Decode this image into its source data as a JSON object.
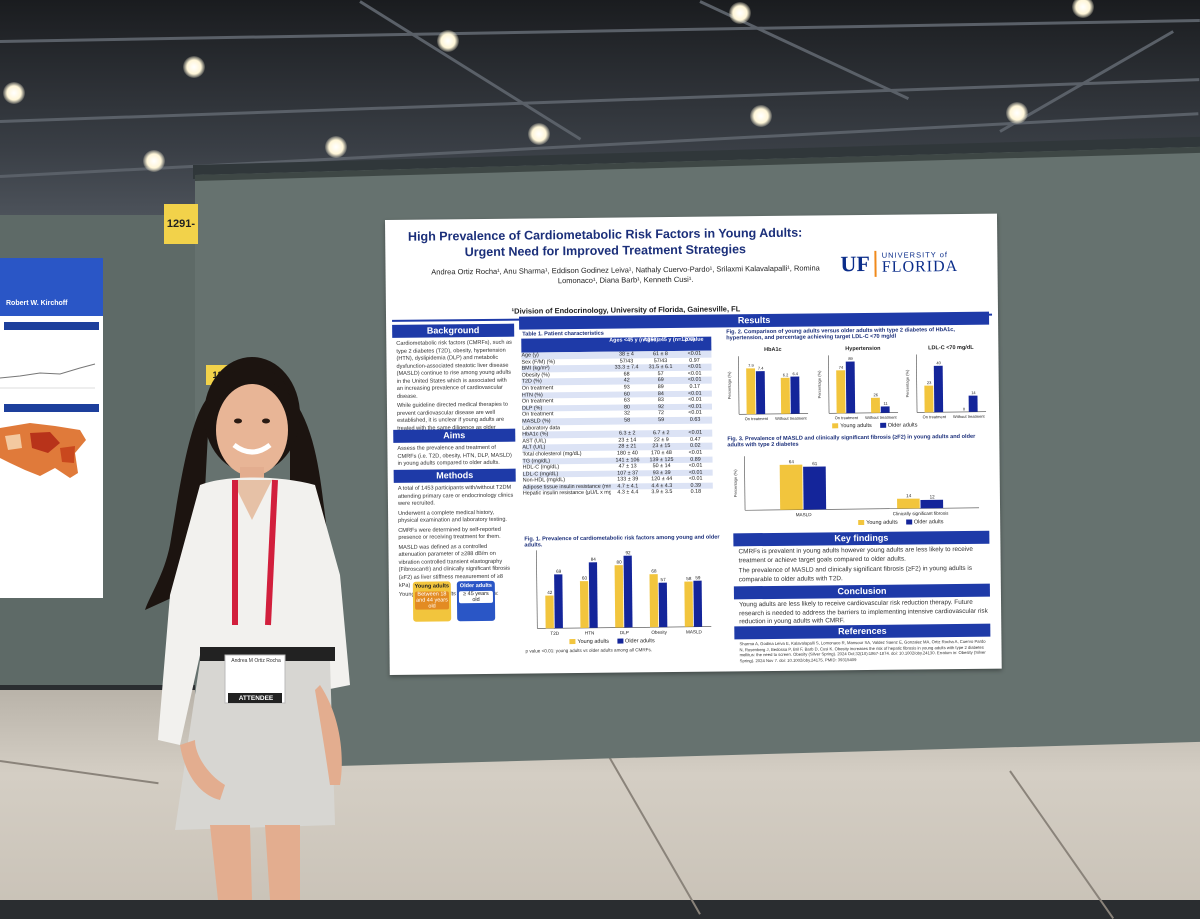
{
  "booth": {
    "board_number": "1291-",
    "board_number_small": "1292-"
  },
  "left_poster": {
    "author": "Robert W. Kirchoff"
  },
  "badge": {
    "name": "Andrea M Ortiz Rocha",
    "role": "ATTENDEE"
  },
  "poster": {
    "title_line1": "High Prevalence of Cardiometabolic Risk Factors in Young Adults:",
    "title_line2": "Urgent Need for Improved Treatment Strategies",
    "authors": "Andrea Ortiz Rocha¹, Anu Sharma¹, Eddison Godinez Leiva¹, Nathaly Cuervo-Pardo¹, Srilaxmi Kalavalapalli¹, Romina Lomonaco¹, Diana Barb¹, Kenneth Cusi¹.",
    "affiliation": "¹Division of Endocrinology, University of Florida, Gainesville, FL",
    "logo": {
      "uf": "UF",
      "university": "UNIVERSITY of",
      "florida": "FLORIDA"
    },
    "sections": {
      "background": "Background",
      "aims": "Aims",
      "methods": "Methods",
      "results": "Results",
      "key_findings": "Key findings",
      "conclusion": "Conclusion",
      "references": "References"
    },
    "background_text": [
      "Cardiometabolic risk factors (CMRFs), such as type 2 diabetes (T2D), obesity, hypertension (HTN), dyslipidemia (DLP) and metabolic dysfunction-associated steatotic liver disease (MASLD) continue to rise among young adults in the United States which is associated with an increasing prevalence of cardiovascular disease.",
      "While guideline directed medical therapies to prevent cardiovascular disease are well established, it is unclear if young adults are treated with the same diligence as older adults."
    ],
    "aims_text": "Assess the prevalence and treatment of CMRFs (i.e. T2D, obesity, HTN, DLP, MASLD) in young adults compared to older adults.",
    "methods_text": [
      "A total of 1453 participants with/without T2DM attending primary care or endocrinology clinics were recruited.",
      "Underwent a complete medical history, physical examination and laboratory testing.",
      "CMRFs were determined by self-reported presence or receiving treatment for them.",
      "MASLD was defined as a controlled attenuation parameter of ≥288 dB/m on vibration controlled transient elastography (Fibroscan®) and clinically significant fibrosis (≥F2) as liver stiffness measurement of ≥8 kPa)",
      "Young and older adults were defined as:"
    ],
    "groups": {
      "young_label": "Young adults",
      "young_def": "Between 18 and 44 years old",
      "older_label": "Older adults",
      "older_def": "≥ 45 years old"
    },
    "table": {
      "title": "Table 1. Patient characteristics",
      "headers": [
        "",
        "Ages <45 y (n=250)",
        "Ages ≥45 y (n=1203)",
        "p value"
      ],
      "rows": [
        [
          "Age (y)",
          "38 ± 4",
          "61 ± 8",
          "<0.01"
        ],
        [
          "Sex (F/M) (%)",
          "57/43",
          "57/43",
          "0.97"
        ],
        [
          "BMI (kg/m²)",
          "33.3 ± 7.4",
          "31.5 ± 6.1",
          "<0.01"
        ],
        [
          "   Obesity (%)",
          "68",
          "57",
          "<0.01"
        ],
        [
          "T2D (%)",
          "42",
          "69",
          "<0.01"
        ],
        [
          "   On treatment",
          "93",
          "89",
          "0.17"
        ],
        [
          "HTN (%)",
          "60",
          "84",
          "<0.01"
        ],
        [
          "   On treatment",
          "63",
          "83",
          "<0.01"
        ],
        [
          "DLP (%)",
          "80",
          "92",
          "<0.01"
        ],
        [
          "   On treatment",
          "32",
          "72",
          "<0.01"
        ],
        [
          "MASLD (%)",
          "58",
          "59",
          "0.63"
        ],
        [
          "Laboratory data",
          "",
          "",
          ""
        ],
        [
          "   HbA1c (%)",
          "6.3 ± 2",
          "6.7 ± 2",
          "<0.01"
        ],
        [
          "   AST (U/L)",
          "23 ± 14",
          "22 ± 9",
          "0.47"
        ],
        [
          "   ALT (U/L)",
          "28 ± 21",
          "23 ± 15",
          "0.02"
        ],
        [
          "   Total cholesterol (mg/dL)",
          "180 ± 40",
          "170 ± 48",
          "<0.01"
        ],
        [
          "   TG (mg/dL)",
          "141 ± 106",
          "139 ± 125",
          "0.89"
        ],
        [
          "   HDL-C (mg/dL)",
          "47 ± 13",
          "50 ± 14",
          "<0.01"
        ],
        [
          "   LDL-C (mg/dL)",
          "107 ± 37",
          "93 ± 39",
          "<0.01"
        ],
        [
          "   Non-HDL (mg/dL)",
          "133 ± 39",
          "120 ± 44",
          "<0.01"
        ],
        [
          "   Adipose tissue insulin resistance (mmol/L x µU/L)",
          "4.7 ± 4.1",
          "4.4 ± 4.3",
          "0.39"
        ],
        [
          "   Hepatic insulin resistance (µU/L x mg/dL)",
          "4.3 ± 4.4",
          "3.9 ± 3.5",
          "0.18"
        ]
      ]
    },
    "fig1": {
      "caption": "Fig. 1. Prevalence of cardiometabolic risk factors among young and older adults.",
      "footnote": "p value <0.01: young adults vs older adults among all CMRFs."
    },
    "fig2": {
      "caption": "Fig. 2. Comparison of young adults versus older adults with type 2 diabetes of HbA1c, hypertension, and percentage achieving target LDL-C <70 mg/dl",
      "panels": [
        "HbA1c",
        "Hypertension",
        "LDL-C <70 mg/dL"
      ]
    },
    "fig3": {
      "caption": "Fig. 3. Prevalence of MASLD and clinically significant fibrosis (≥F2) in young adults and older adults with type 2 diabetes"
    },
    "legend": {
      "young": "Young adults",
      "older": "Older adults"
    },
    "key_findings_text": [
      "CMRFs is prevalent in young adults however young adults are less likely to receive treatment or achieve target goals compared to older adults.",
      "The prevalence of MASLD and clinically significant fibrosis (≥F2) in young adults is comparable to older adults with T2D."
    ],
    "conclusion_text": "Young adults are less likely to receive cardiovascular risk reduction therapy. Future research is needed to address the barriers to implementing intensive cardiovascular risk reduction in young adults with CMRF.",
    "references_text": "Sharma A, Godina Leiva E, Kalavalapalli S, Lomonaco R, Mansour SA, Valdez Saenz E, Gonzalez MA, Ortiz Rocha A, Cuervo Pardo N, Rosenberg J, Bedossa P, Bril F, Barb D, Cusi K. Obesity increases the risk of hepatic fibrosis in young adults with type 2 diabetes mellitus: the need to screen. Obesity (Silver Spring). 2024 Oct;32(10):1867-1874. doi: 10.1002/oby.24130. Erratum in: Obesity (Silver Spring). 2024 Nov 7. doi: 10.1002/oby.24175. PMID: 39315409"
  },
  "chart_data": [
    {
      "type": "bar",
      "title": "Fig. 1. Prevalence of cardiometabolic risk factors among young and older adults.",
      "categories": [
        "T2D",
        "HTN",
        "DLP",
        "Obesity",
        "MASLD"
      ],
      "series": [
        {
          "name": "Young adults",
          "values": [
            42,
            60,
            80,
            68,
            58
          ],
          "color": "#f2c53d"
        },
        {
          "name": "Older adults",
          "values": [
            69,
            84,
            92,
            57,
            59
          ],
          "color": "#14259a"
        }
      ],
      "ylim": [
        0,
        100
      ]
    },
    {
      "type": "bar",
      "title": "HbA1c",
      "categories": [
        "On treatment",
        "Without treatment"
      ],
      "series": [
        {
          "name": "Young adults",
          "values": [
            7.9,
            6.2
          ],
          "color": "#f2c53d"
        },
        {
          "name": "Older adults",
          "values": [
            7.4,
            6.4
          ],
          "color": "#14259a"
        }
      ],
      "ylabel": "Percentage (%)",
      "ylim": [
        0,
        10
      ]
    },
    {
      "type": "bar",
      "title": "Hypertension",
      "categories": [
        "On treatment",
        "Without treatment"
      ],
      "series": [
        {
          "name": "Young adults",
          "values": [
            74,
            26
          ],
          "color": "#f2c53d"
        },
        {
          "name": "Older adults",
          "values": [
            89,
            11
          ],
          "color": "#14259a"
        }
      ],
      "ylabel": "Percentage (%)",
      "ylim": [
        0,
        100
      ]
    },
    {
      "type": "bar",
      "title": "LDL-C <70 mg/dL",
      "categories": [
        "On treatment",
        "Without treatment"
      ],
      "series": [
        {
          "name": "Young adults",
          "values": [
            23,
            0
          ],
          "color": "#f2c53d"
        },
        {
          "name": "Older adults",
          "values": [
            40,
            14
          ],
          "color": "#14259a"
        }
      ],
      "ylabel": "Percentage (%)",
      "ylim": [
        0,
        50
      ]
    },
    {
      "type": "bar",
      "title": "Fig. 3. Prevalence of MASLD and clinically significant fibrosis (≥F2) in young adults and older adults with type 2 diabetes",
      "categories": [
        "MASLD",
        "Clinically significant fibrosis"
      ],
      "series": [
        {
          "name": "Young adults",
          "values": [
            64,
            14
          ],
          "color": "#f2c53d"
        },
        {
          "name": "Older adults",
          "values": [
            61,
            12
          ],
          "color": "#14259a"
        }
      ],
      "ylabel": "Percentage (%)"
    }
  ]
}
